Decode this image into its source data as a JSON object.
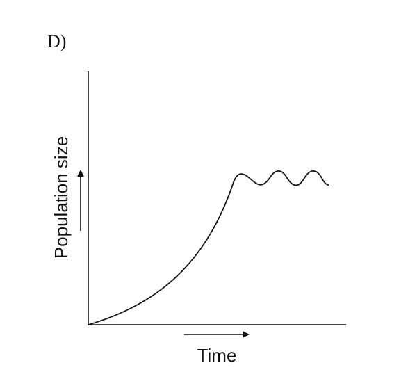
{
  "label": "D)",
  "axes": {
    "y_label": "Population size",
    "x_label": "Time"
  }
}
